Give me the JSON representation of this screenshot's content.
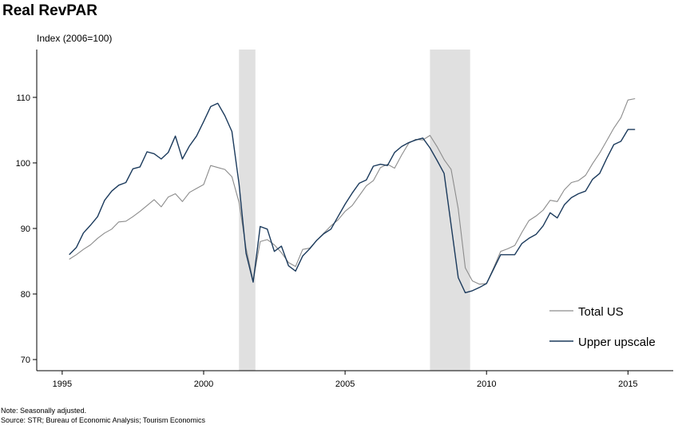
{
  "header": {
    "title": "Real RevPAR",
    "y_unit_label": "Index (2006=100)"
  },
  "footnote": {
    "note": "Note: Seasonally adjusted.",
    "source": "Source: STR; Bureau of Economic Analysis; Tourism Economics"
  },
  "colors": {
    "total_us": "#8c8c8c",
    "upper_upscale": "#1b3a5c",
    "recession_band": "#e0e0e0",
    "axis": "#000000"
  },
  "chart_data": {
    "type": "line",
    "title": "Real RevPAR",
    "ylabel": "Index (2006=100)",
    "xlabel": "",
    "xlim": [
      1994.1,
      2016.6
    ],
    "ylim": [
      68.3,
      117.3
    ],
    "x_ticks": [
      1995,
      2000,
      2005,
      2010,
      2015
    ],
    "y_ticks": [
      70,
      80,
      90,
      100,
      110
    ],
    "grid": false,
    "legend_position": "bottom-right",
    "recessions": [
      {
        "start": 2001.25,
        "end": 2001.83
      },
      {
        "start": 2008.0,
        "end": 2009.42
      }
    ],
    "x": [
      1995.25,
      1995.5,
      1995.75,
      1996.0,
      1996.25,
      1996.5,
      1996.75,
      1997.0,
      1997.25,
      1997.5,
      1997.75,
      1998.0,
      1998.25,
      1998.5,
      1998.75,
      1999.0,
      1999.25,
      1999.5,
      1999.75,
      2000.0,
      2000.25,
      2000.5,
      2000.75,
      2001.0,
      2001.25,
      2001.5,
      2001.75,
      2002.0,
      2002.25,
      2002.5,
      2002.75,
      2003.0,
      2003.25,
      2003.5,
      2003.75,
      2004.0,
      2004.25,
      2004.5,
      2004.75,
      2005.0,
      2005.25,
      2005.5,
      2005.75,
      2006.0,
      2006.25,
      2006.5,
      2006.75,
      2007.0,
      2007.25,
      2007.5,
      2007.75,
      2008.0,
      2008.25,
      2008.5,
      2008.75,
      2009.0,
      2009.25,
      2009.5,
      2009.75,
      2010.0,
      2010.25,
      2010.5,
      2010.75,
      2011.0,
      2011.25,
      2011.5,
      2011.75,
      2012.0,
      2012.25,
      2012.5,
      2012.75,
      2013.0,
      2013.25,
      2013.5,
      2013.75,
      2014.0,
      2014.25,
      2014.5,
      2014.75,
      2015.0,
      2015.25
    ],
    "series": [
      {
        "name": "Total US",
        "color": "#8c8c8c",
        "values": [
          85.3,
          86.0,
          86.8,
          87.5,
          88.5,
          89.3,
          89.9,
          91.0,
          91.1,
          91.8,
          92.6,
          93.5,
          94.4,
          93.3,
          94.8,
          95.3,
          94.1,
          95.5,
          96.1,
          96.7,
          99.6,
          99.3,
          99.0,
          97.9,
          94.0,
          87.0,
          82.0,
          88.0,
          88.3,
          87.5,
          86.3,
          84.8,
          84.2,
          86.8,
          87.0,
          88.2,
          89.3,
          90.4,
          91.3,
          92.6,
          93.5,
          95.0,
          96.5,
          97.3,
          99.3,
          99.8,
          99.2,
          101.2,
          103.0,
          103.6,
          103.5,
          104.2,
          102.5,
          100.5,
          99.0,
          93.0,
          84.0,
          82.0,
          81.5,
          81.6,
          84.0,
          86.5,
          86.9,
          87.4,
          89.4,
          91.2,
          91.9,
          92.8,
          94.3,
          94.1,
          95.9,
          97.0,
          97.3,
          98.1,
          99.9,
          101.5,
          103.4,
          105.3,
          106.9,
          109.6,
          109.8
        ]
      },
      {
        "name": "Upper upscale",
        "color": "#1b3a5c",
        "values": [
          86.0,
          87.1,
          89.3,
          90.5,
          91.8,
          94.3,
          95.7,
          96.6,
          97.0,
          99.1,
          99.4,
          101.7,
          101.4,
          100.6,
          101.6,
          104.1,
          100.6,
          102.6,
          104.1,
          106.3,
          108.6,
          109.1,
          107.2,
          104.8,
          96.8,
          86.2,
          81.8,
          90.3,
          89.9,
          86.5,
          87.3,
          84.3,
          83.5,
          85.8,
          86.9,
          88.2,
          89.2,
          89.9,
          91.8,
          93.7,
          95.4,
          96.9,
          97.4,
          99.5,
          99.8,
          99.6,
          101.6,
          102.5,
          103.1,
          103.5,
          103.8,
          102.3,
          100.4,
          98.4,
          90.5,
          82.5,
          80.2,
          80.5,
          81.0,
          81.6,
          83.8,
          86.0,
          86.0,
          86.0,
          87.7,
          88.5,
          89.1,
          90.4,
          92.4,
          91.6,
          93.6,
          94.7,
          95.3,
          95.7,
          97.5,
          98.4,
          100.7,
          102.8,
          103.3,
          105.1,
          105.1
        ]
      }
    ]
  }
}
